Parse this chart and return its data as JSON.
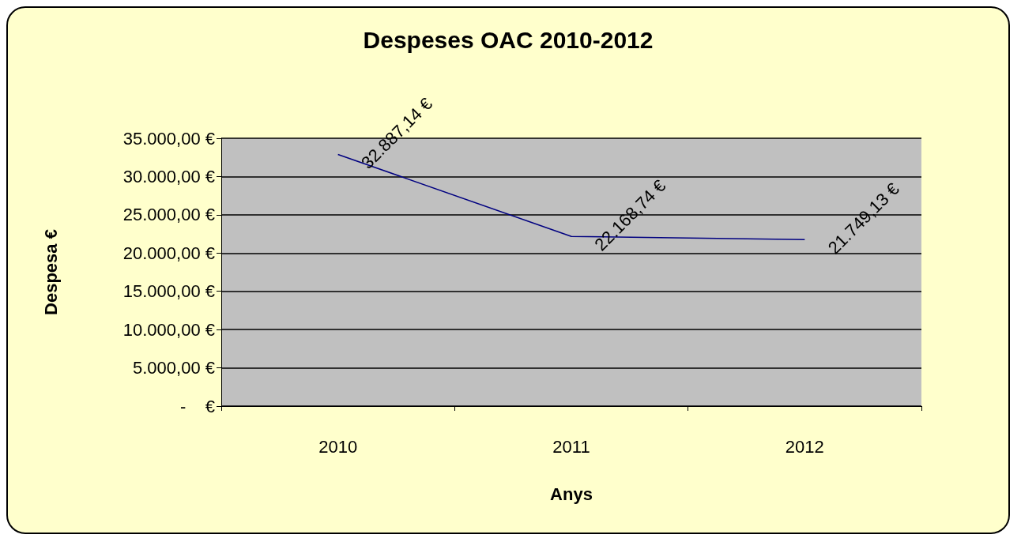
{
  "chart_data": {
    "type": "line",
    "title": "Despeses OAC 2010-2012",
    "xlabel": "Anys",
    "ylabel": "Despesa €",
    "categories": [
      "2010",
      "2011",
      "2012"
    ],
    "series": [
      {
        "color": "#000080",
        "values": [
          32887.14,
          22168.74,
          21749.13
        ],
        "value_labels": [
          "32.887,14 €",
          "22.168,74 €",
          "21.749,13 €"
        ]
      }
    ],
    "ylim": [
      0,
      35000
    ],
    "yticks": [
      {
        "value": 0,
        "label": "-    €"
      },
      {
        "value": 5000,
        "label": "5.000,00 €"
      },
      {
        "value": 10000,
        "label": "10.000,00 €"
      },
      {
        "value": 15000,
        "label": "15.000,00 €"
      },
      {
        "value": 20000,
        "label": "20.000,00 €"
      },
      {
        "value": 25000,
        "label": "25.000,00 €"
      },
      {
        "value": 30000,
        "label": "30.000,00 €"
      },
      {
        "value": 35000,
        "label": "35.000,00 €"
      }
    ],
    "grid": "y",
    "marker": "none",
    "line_style": "solid"
  }
}
